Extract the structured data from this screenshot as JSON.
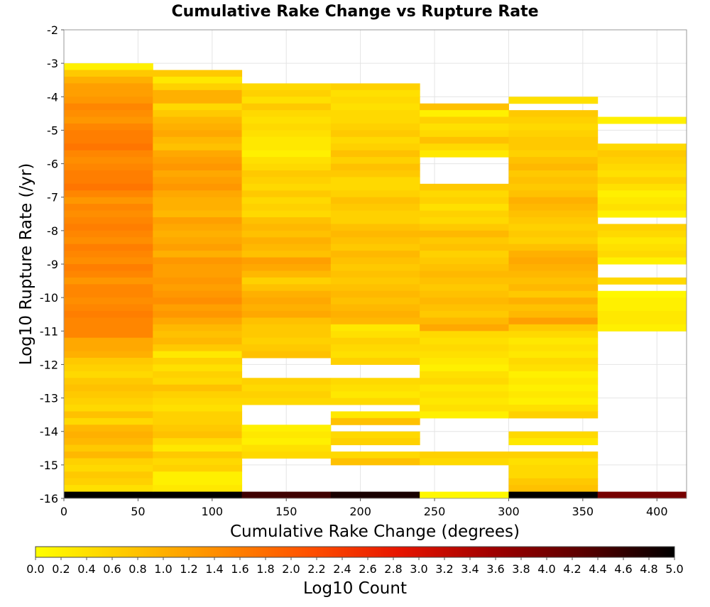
{
  "chart_data": {
    "type": "heatmap",
    "title": "Cumulative Rake Change vs Rupture Rate",
    "xlabel": "Cumulative Rake Change (degrees)",
    "ylabel": "Log10 Rupture Rate (/yr)",
    "xlim": [
      0,
      420
    ],
    "ylim": [
      -16,
      -2
    ],
    "x_ticks": [
      "0",
      "50",
      "100",
      "150",
      "200",
      "250",
      "300",
      "350",
      "400"
    ],
    "y_ticks": [
      "-2",
      "-3",
      "-4",
      "-5",
      "-6",
      "-7",
      "-8",
      "-9",
      "-10",
      "-11",
      "-12",
      "-13",
      "-14",
      "-15",
      "-16"
    ],
    "grid": true,
    "x_bin_width": 60,
    "y_bin_height": 0.2,
    "colorscale": {
      "label": "Log10 Count",
      "min": 0.0,
      "max": 5.0,
      "stops": [
        "#ffff00",
        "#ffc800",
        "#ff8c00",
        "#ff5000",
        "#e61400",
        "#a00000",
        "#5a0000",
        "#000000"
      ],
      "tick_labels": [
        "0.0",
        "0.2",
        "0.4",
        "0.6",
        "0.8",
        "1.0",
        "1.2",
        "1.4",
        "1.6",
        "1.8",
        "2.0",
        "2.2",
        "2.4",
        "2.6",
        "2.8",
        "3.0",
        "3.2",
        "3.4",
        "3.6",
        "3.8",
        "4.0",
        "4.2",
        "4.4",
        "4.6",
        "4.8",
        "5.0"
      ]
    },
    "columns": [
      {
        "x_start": 0,
        "y_starts": [
          -3.2,
          -3.4,
          -3.6,
          -3.8,
          -4.0,
          -4.2,
          -4.4,
          -4.6,
          -4.8,
          -5.0,
          -5.2,
          -5.4,
          -5.6,
          -5.8,
          -6.0,
          -6.2,
          -6.4,
          -6.6,
          -6.8,
          -7.0,
          -7.2,
          -7.4,
          -7.6,
          -7.8,
          -8.0,
          -8.2,
          -8.4,
          -8.6,
          -8.8,
          -9.0,
          -9.2,
          -9.4,
          -9.6,
          -9.8,
          -10.0,
          -10.2,
          -10.4,
          -10.6,
          -10.8,
          -11.0,
          -11.2,
          -11.4,
          -11.6,
          -11.8,
          -12.0,
          -12.2,
          -12.4,
          -12.6,
          -12.8,
          -13.0,
          -13.2,
          -13.4,
          -13.6,
          -13.8,
          -14.0,
          -14.2,
          -14.4,
          -14.6,
          -14.8,
          -15.0,
          -15.2,
          -15.4,
          -15.6,
          -15.8,
          -16.0
        ],
        "values": [
          0.2,
          0.7,
          1.0,
          1.2,
          1.2,
          1.3,
          1.5,
          1.4,
          1.3,
          1.5,
          1.6,
          1.6,
          1.7,
          1.5,
          1.4,
          1.5,
          1.6,
          1.6,
          1.7,
          1.5,
          1.3,
          1.5,
          1.4,
          1.5,
          1.6,
          1.5,
          1.4,
          1.6,
          1.5,
          1.4,
          1.6,
          1.5,
          1.3,
          1.5,
          1.5,
          1.4,
          1.5,
          1.6,
          1.5,
          1.5,
          1.5,
          1.1,
          1.1,
          1.0,
          0.7,
          0.6,
          0.5,
          0.7,
          0.8,
          0.7,
          0.6,
          0.5,
          0.8,
          0.5,
          0.9,
          1.0,
          0.9,
          0.7,
          0.9,
          0.6,
          0.5,
          0.7,
          0.6,
          0.4,
          5.0
        ]
      },
      {
        "x_start": 60,
        "y_starts": [
          -3.4,
          -3.6,
          -3.8,
          -4.0,
          -4.2,
          -4.4,
          -4.6,
          -4.8,
          -5.0,
          -5.2,
          -5.4,
          -5.6,
          -5.8,
          -6.0,
          -6.2,
          -6.4,
          -6.6,
          -6.8,
          -7.0,
          -7.2,
          -7.4,
          -7.6,
          -7.8,
          -8.0,
          -8.2,
          -8.4,
          -8.6,
          -8.8,
          -9.0,
          -9.2,
          -9.4,
          -9.6,
          -9.8,
          -10.0,
          -10.2,
          -10.4,
          -10.6,
          -10.8,
          -11.0,
          -11.2,
          -11.4,
          -11.6,
          -11.8,
          -12.0,
          -12.2,
          -12.4,
          -12.6,
          -12.8,
          -13.0,
          -13.2,
          -13.4,
          -13.6,
          -13.8,
          -14.0,
          -14.2,
          -14.4,
          -14.6,
          -14.8,
          -15.0,
          -15.2,
          -15.4,
          -15.6,
          -15.8,
          -16.0
        ],
        "values": [
          0.7,
          0.3,
          0.6,
          1.0,
          1.0,
          0.5,
          0.7,
          0.9,
          1.0,
          1.1,
          0.9,
          0.8,
          1.1,
          1.2,
          1.3,
          1.1,
          1.2,
          1.3,
          1.1,
          1.0,
          1.0,
          0.9,
          1.2,
          1.1,
          1.0,
          1.1,
          1.2,
          1.0,
          1.3,
          1.2,
          1.2,
          1.3,
          1.2,
          1.3,
          1.4,
          1.2,
          1.3,
          1.1,
          0.9,
          0.8,
          0.9,
          0.7,
          0.3,
          0.6,
          0.4,
          0.6,
          0.5,
          0.8,
          0.6,
          0.5,
          0.4,
          0.6,
          0.6,
          0.7,
          0.8,
          0.5,
          0.3,
          0.7,
          0.5,
          0.6,
          0.2,
          0.2,
          0.3,
          5.0
        ]
      },
      {
        "x_start": 120,
        "y_starts": [
          -3.8,
          -4.0,
          -4.2,
          -4.4,
          -4.6,
          -4.8,
          -5.0,
          -5.2,
          -5.4,
          -5.6,
          -5.8,
          -6.0,
          -6.2,
          -6.4,
          -6.6,
          -6.8,
          -7.0,
          -7.2,
          -7.4,
          -7.6,
          -7.8,
          -8.0,
          -8.2,
          -8.4,
          -8.6,
          -8.8,
          -9.0,
          -9.2,
          -9.4,
          -9.6,
          -9.8,
          -10.0,
          -10.2,
          -10.4,
          -10.6,
          -10.8,
          -11.0,
          -11.2,
          -11.4,
          -11.6,
          -11.8,
          -12.6,
          -12.8,
          -13.0,
          -13.2,
          -14.0,
          -14.2,
          -14.4,
          -14.6,
          -14.8,
          -16.0
        ],
        "values": [
          0.5,
          0.6,
          0.4,
          0.7,
          0.5,
          0.4,
          0.5,
          0.4,
          0.3,
          0.3,
          0.2,
          0.4,
          0.5,
          0.7,
          0.6,
          0.5,
          0.7,
          0.5,
          0.6,
          0.5,
          0.8,
          0.9,
          0.8,
          1.0,
          0.9,
          0.8,
          1.2,
          1.1,
          0.9,
          0.6,
          0.8,
          1.0,
          1.1,
          1.0,
          1.1,
          0.8,
          0.7,
          0.7,
          0.6,
          0.7,
          0.8,
          0.6,
          0.5,
          0.6,
          0.5,
          0.2,
          0.3,
          0.2,
          0.4,
          0.5,
          4.5
        ]
      },
      {
        "x_start": 180,
        "y_starts": [
          -3.8,
          -4.0,
          -4.2,
          -4.4,
          -4.6,
          -4.8,
          -5.0,
          -5.2,
          -5.4,
          -5.6,
          -5.8,
          -6.0,
          -6.2,
          -6.4,
          -6.6,
          -6.8,
          -7.0,
          -7.2,
          -7.4,
          -7.6,
          -7.8,
          -8.0,
          -8.2,
          -8.4,
          -8.6,
          -8.8,
          -9.0,
          -9.2,
          -9.4,
          -9.6,
          -9.8,
          -10.0,
          -10.2,
          -10.4,
          -10.6,
          -10.8,
          -11.0,
          -11.2,
          -11.4,
          -11.6,
          -11.8,
          -12.0,
          -12.6,
          -12.8,
          -13.0,
          -13.2,
          -13.6,
          -13.8,
          -14.2,
          -14.4,
          -14.8,
          -15.0,
          -16.0
        ],
        "values": [
          0.6,
          0.4,
          0.5,
          0.4,
          0.5,
          0.5,
          0.6,
          0.7,
          0.5,
          0.6,
          0.8,
          0.6,
          0.8,
          0.7,
          0.5,
          0.5,
          0.6,
          0.8,
          0.7,
          0.6,
          0.6,
          0.8,
          0.9,
          0.8,
          0.7,
          0.9,
          0.8,
          0.7,
          0.8,
          0.7,
          0.8,
          0.9,
          0.8,
          0.9,
          1.0,
          0.9,
          0.3,
          0.4,
          0.6,
          0.5,
          0.4,
          0.6,
          0.5,
          0.4,
          0.3,
          0.5,
          0.3,
          0.8,
          0.5,
          0.6,
          0.5,
          0.8,
          4.8
        ]
      },
      {
        "x_start": 240,
        "y_starts": [
          -4.4,
          -4.6,
          -4.8,
          -5.0,
          -5.2,
          -5.4,
          -5.6,
          -5.8,
          -6.8,
          -7.0,
          -7.2,
          -7.4,
          -7.6,
          -7.8,
          -8.0,
          -8.2,
          -8.4,
          -8.6,
          -8.8,
          -9.0,
          -9.2,
          -9.4,
          -9.6,
          -9.8,
          -10.0,
          -10.2,
          -10.4,
          -10.6,
          -10.8,
          -11.0,
          -11.2,
          -11.4,
          -11.6,
          -11.8,
          -12.0,
          -12.2,
          -12.4,
          -12.6,
          -12.8,
          -13.0,
          -13.2,
          -13.4,
          -13.6,
          -14.8,
          -15.0,
          -16.0
        ],
        "values": [
          0.8,
          0.2,
          0.6,
          0.4,
          0.5,
          0.8,
          0.5,
          0.3,
          0.7,
          0.5,
          0.6,
          0.4,
          0.6,
          0.5,
          0.7,
          0.9,
          0.7,
          0.8,
          0.6,
          0.7,
          0.8,
          0.9,
          0.8,
          0.7,
          0.8,
          0.9,
          0.8,
          0.7,
          0.9,
          1.1,
          0.5,
          0.4,
          0.5,
          0.4,
          0.3,
          0.2,
          0.4,
          0.5,
          0.3,
          0.4,
          0.3,
          0.4,
          0.2,
          0.6,
          0.5,
          0.1
        ]
      },
      {
        "x_start": 300,
        "y_starts": [
          -4.2,
          -4.6,
          -4.8,
          -5.0,
          -5.2,
          -5.4,
          -5.6,
          -5.8,
          -6.0,
          -6.2,
          -6.4,
          -6.6,
          -6.8,
          -7.0,
          -7.2,
          -7.4,
          -7.6,
          -7.8,
          -8.0,
          -8.2,
          -8.4,
          -8.6,
          -8.8,
          -9.0,
          -9.2,
          -9.4,
          -9.6,
          -9.8,
          -10.0,
          -10.2,
          -10.4,
          -10.6,
          -10.8,
          -11.0,
          -11.2,
          -11.4,
          -11.6,
          -11.8,
          -12.0,
          -12.2,
          -12.4,
          -12.6,
          -12.8,
          -13.0,
          -13.2,
          -13.4,
          -13.6,
          -14.2,
          -14.4,
          -14.8,
          -15.0,
          -15.2,
          -15.4,
          -15.6,
          -15.8,
          -16.0
        ],
        "values": [
          0.4,
          0.7,
          0.6,
          0.5,
          0.6,
          0.7,
          0.7,
          0.6,
          0.8,
          0.9,
          0.7,
          0.8,
          0.7,
          0.8,
          1.0,
          0.9,
          0.8,
          0.7,
          0.6,
          0.7,
          0.6,
          0.8,
          1.0,
          1.1,
          1.0,
          0.9,
          0.8,
          0.9,
          0.7,
          1.0,
          0.8,
          0.9,
          1.2,
          0.7,
          0.5,
          0.3,
          0.4,
          0.3,
          0.5,
          0.4,
          0.2,
          0.3,
          0.2,
          0.3,
          0.2,
          0.4,
          0.6,
          0.5,
          0.3,
          0.6,
          0.4,
          0.5,
          0.5,
          0.7,
          0.8,
          5.0
        ]
      },
      {
        "x_start": 360,
        "y_starts": [
          -4.8,
          -5.6,
          -5.8,
          -6.0,
          -6.2,
          -6.4,
          -6.6,
          -6.8,
          -7.0,
          -7.2,
          -7.4,
          -7.6,
          -8.0,
          -8.2,
          -8.4,
          -8.6,
          -8.8,
          -9.0,
          -9.6,
          -10.0,
          -10.2,
          -10.4,
          -10.6,
          -10.8,
          -11.0,
          -16.0
        ],
        "values": [
          0.2,
          0.5,
          0.7,
          0.6,
          0.5,
          0.4,
          0.6,
          0.4,
          0.2,
          0.3,
          0.4,
          0.2,
          0.6,
          0.5,
          0.3,
          0.4,
          0.5,
          0.2,
          0.5,
          0.1,
          0.2,
          0.2,
          0.3,
          0.3,
          0.2,
          4.0
        ]
      }
    ]
  }
}
